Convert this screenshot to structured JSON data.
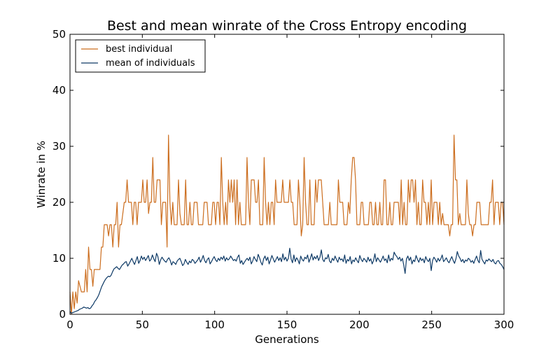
{
  "chart_data": {
    "type": "line",
    "title": "Best and mean winrate of the Cross Entropy encoding",
    "xlabel": "Generations",
    "ylabel": "Winrate in %",
    "xlim": [
      0,
      300
    ],
    "ylim": [
      0,
      50
    ],
    "xticks": [
      0,
      50,
      100,
      150,
      200,
      250,
      300
    ],
    "yticks": [
      0,
      10,
      20,
      30,
      40,
      50
    ],
    "grid": false,
    "legend_position": "top-left",
    "series": [
      {
        "name": "best individual",
        "color": "#cc6e1f",
        "values": [
          4,
          0,
          4,
          1,
          4,
          2,
          6,
          5,
          4,
          4,
          4,
          8,
          4,
          12,
          8,
          8,
          5,
          8,
          8,
          8,
          8,
          8,
          12,
          12,
          16,
          16,
          16,
          14,
          16,
          16,
          12,
          16,
          16,
          20,
          12,
          16,
          16,
          18,
          20,
          20,
          24,
          20,
          20,
          20,
          16,
          20,
          20,
          16,
          20,
          20,
          20,
          24,
          20,
          20,
          24,
          18,
          20,
          20,
          28,
          20,
          20,
          24,
          24,
          24,
          16,
          20,
          20,
          20,
          12,
          32,
          20,
          16,
          20,
          16,
          16,
          16,
          24,
          18,
          16,
          16,
          16,
          24,
          16,
          16,
          20,
          16,
          16,
          20,
          20,
          20,
          16,
          16,
          16,
          16,
          20,
          20,
          20,
          16,
          16,
          16,
          20,
          20,
          16,
          20,
          20,
          16,
          28,
          20,
          16,
          20,
          16,
          24,
          20,
          24,
          20,
          24,
          16,
          24,
          16,
          20,
          16,
          16,
          16,
          16,
          28,
          20,
          16,
          24,
          24,
          24,
          20,
          20,
          24,
          16,
          16,
          16,
          28,
          20,
          16,
          20,
          16,
          20,
          20,
          16,
          24,
          20,
          20,
          20,
          20,
          24,
          20,
          20,
          20,
          20,
          24,
          20,
          20,
          16,
          16,
          16,
          24,
          20,
          14,
          16,
          28,
          20,
          16,
          16,
          24,
          16,
          16,
          16,
          24,
          20,
          24,
          24,
          24,
          20,
          16,
          16,
          16,
          16,
          20,
          16,
          16,
          16,
          16,
          16,
          24,
          20,
          20,
          20,
          16,
          16,
          16,
          20,
          18,
          24,
          28,
          28,
          24,
          16,
          16,
          16,
          20,
          20,
          16,
          16,
          16,
          16,
          20,
          20,
          16,
          16,
          20,
          16,
          16,
          20,
          16,
          16,
          24,
          24,
          16,
          16,
          20,
          16,
          16,
          20,
          20,
          20,
          20,
          16,
          24,
          16,
          20,
          16,
          16,
          24,
          20,
          24,
          24,
          20,
          24,
          16,
          20,
          16,
          16,
          24,
          20,
          20,
          16,
          20,
          16,
          24,
          16,
          20,
          20,
          20,
          16,
          20,
          16,
          18,
          16,
          16,
          16,
          16,
          14,
          16,
          16,
          32,
          24,
          24,
          16,
          18,
          16,
          16,
          16,
          16,
          24,
          18,
          16,
          16,
          14,
          16,
          16,
          20,
          20,
          20,
          16,
          16,
          16,
          16,
          16,
          16,
          20,
          20,
          24,
          16,
          20,
          20,
          20,
          16,
          20,
          20,
          16
        ]
      },
      {
        "name": "mean of individuals",
        "color": "#0e3a66",
        "values": [
          0.5,
          0.2,
          0.3,
          0.4,
          0.5,
          0.6,
          0.7,
          0.9,
          1.0,
          1.1,
          1.3,
          1.2,
          1.1,
          1.2,
          1.0,
          1.1,
          1.5,
          1.8,
          2.3,
          2.6,
          3.0,
          3.5,
          4.2,
          4.9,
          5.4,
          5.9,
          6.3,
          6.6,
          6.8,
          6.7,
          7.0,
          7.6,
          8.1,
          8.3,
          8.5,
          8.2,
          8.0,
          8.4,
          8.8,
          9.0,
          9.3,
          9.4,
          8.6,
          9.0,
          9.5,
          10.0,
          9.4,
          8.9,
          9.6,
          10.3,
          9.1,
          9.6,
          10.4,
          9.8,
          10.2,
          9.6,
          10.0,
          10.5,
          9.5,
          9.8,
          10.6,
          9.9,
          9.4,
          10.9,
          10.3,
          8.9,
          9.7,
          10.2,
          9.8,
          9.5,
          9.3,
          9.8,
          10.1,
          9.6,
          8.8,
          9.4,
          9.2,
          8.9,
          9.5,
          9.8,
          10.0,
          9.4,
          8.7,
          9.0,
          9.8,
          9.3,
          8.9,
          9.5,
          9.2,
          9.8,
          9.6,
          9.1,
          9.4,
          9.7,
          10.2,
          9.3,
          9.8,
          10.5,
          9.6,
          9.2,
          9.8,
          10.1,
          9.0,
          9.4,
          9.9,
          10.3,
          9.7,
          9.4,
          10.0,
          9.6,
          10.2,
          9.8,
          10.4,
          9.5,
          10.1,
          9.7,
          9.9,
          10.4,
          10.0,
          9.6,
          9.8,
          9.5,
          10.2,
          10.6,
          9.1,
          9.6,
          8.9,
          9.3,
          9.7,
          10.0,
          9.6,
          10.2,
          9.0,
          9.5,
          10.3,
          9.8,
          9.4,
          10.7,
          10.1,
          9.3,
          8.8,
          9.9,
          10.4,
          9.6,
          10.2,
          9.0,
          9.7,
          10.5,
          9.9,
          9.3,
          9.8,
          10.3,
          9.6,
          10.1,
          9.4,
          10.8,
          9.7,
          10.2,
          9.5,
          10.0,
          11.8,
          9.9,
          9.2,
          10.6,
          9.4,
          10.1,
          9.7,
          9.0,
          10.4,
          9.8,
          9.5,
          10.2,
          9.9,
          10.6,
          9.3,
          10.0,
          10.8,
          9.7,
          10.3,
          9.9,
          10.5,
          9.6,
          10.2,
          11.5,
          9.8,
          9.4,
          10.1,
          9.9,
          10.7,
          9.5,
          9.2,
          10.0,
          9.6,
          10.4,
          9.8,
          9.3,
          10.2,
          9.7,
          9.9,
          9.4,
          10.6,
          9.1,
          9.8,
          9.5,
          10.3,
          9.0,
          9.7,
          9.4,
          10.1,
          9.6,
          9.2,
          10.5,
          9.8,
          9.4,
          10.0,
          9.7,
          9.3,
          10.2,
          9.5,
          9.9,
          9.0,
          9.6,
          10.8,
          9.4,
          10.1,
          9.7,
          9.3,
          9.8,
          10.4,
          9.6,
          9.9,
          9.2,
          10.6,
          9.5,
          10.0,
          9.7,
          11.1,
          10.6,
          10.3,
          9.8,
          10.2,
          9.5,
          10.0,
          8.8,
          7.3,
          9.9,
          10.4,
          9.6,
          10.2,
          9.0,
          9.7,
          9.4,
          10.5,
          9.8,
          9.3,
          10.1,
          9.6,
          9.9,
          9.2,
          10.3,
          9.7,
          9.4,
          10.0,
          7.8,
          9.6,
          10.2,
          9.8,
          9.3,
          10.0,
          9.5,
          9.9,
          10.6,
          9.4,
          9.7,
          10.1,
          9.5,
          9.2,
          9.8,
          10.3,
          9.6,
          9.1,
          9.9,
          11.2,
          10.4,
          10.0,
          9.4,
          9.8,
          9.2,
          9.7,
          9.5,
          10.0,
          9.8,
          9.3,
          9.6,
          9.1,
          9.8,
          10.4,
          9.6,
          9.2,
          11.4,
          9.8,
          9.4,
          9.0,
          9.7,
          9.5,
          9.9,
          9.6,
          9.4,
          9.8,
          9.2,
          9.0,
          9.5,
          9.6,
          9.1,
          8.9,
          8.5,
          8.0
        ]
      }
    ]
  }
}
